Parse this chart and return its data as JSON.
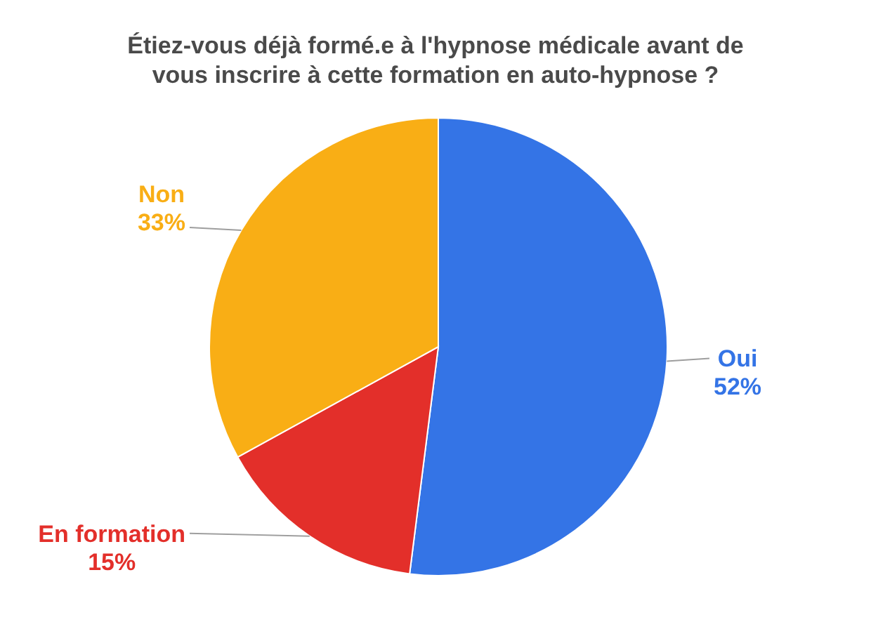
{
  "chart_data": {
    "type": "pie",
    "title": "Étiez-vous déjà formé.e à l'hypnose médicale avant de vous inscrire à cette formation en auto-hypnose ?",
    "categories": [
      "Oui",
      "En formation",
      "Non"
    ],
    "values": [
      52,
      15,
      33
    ],
    "colors": [
      "#3474e6",
      "#e32f2a",
      "#f9ae15"
    ],
    "value_labels": [
      "52%",
      "15%",
      "33%"
    ]
  }
}
